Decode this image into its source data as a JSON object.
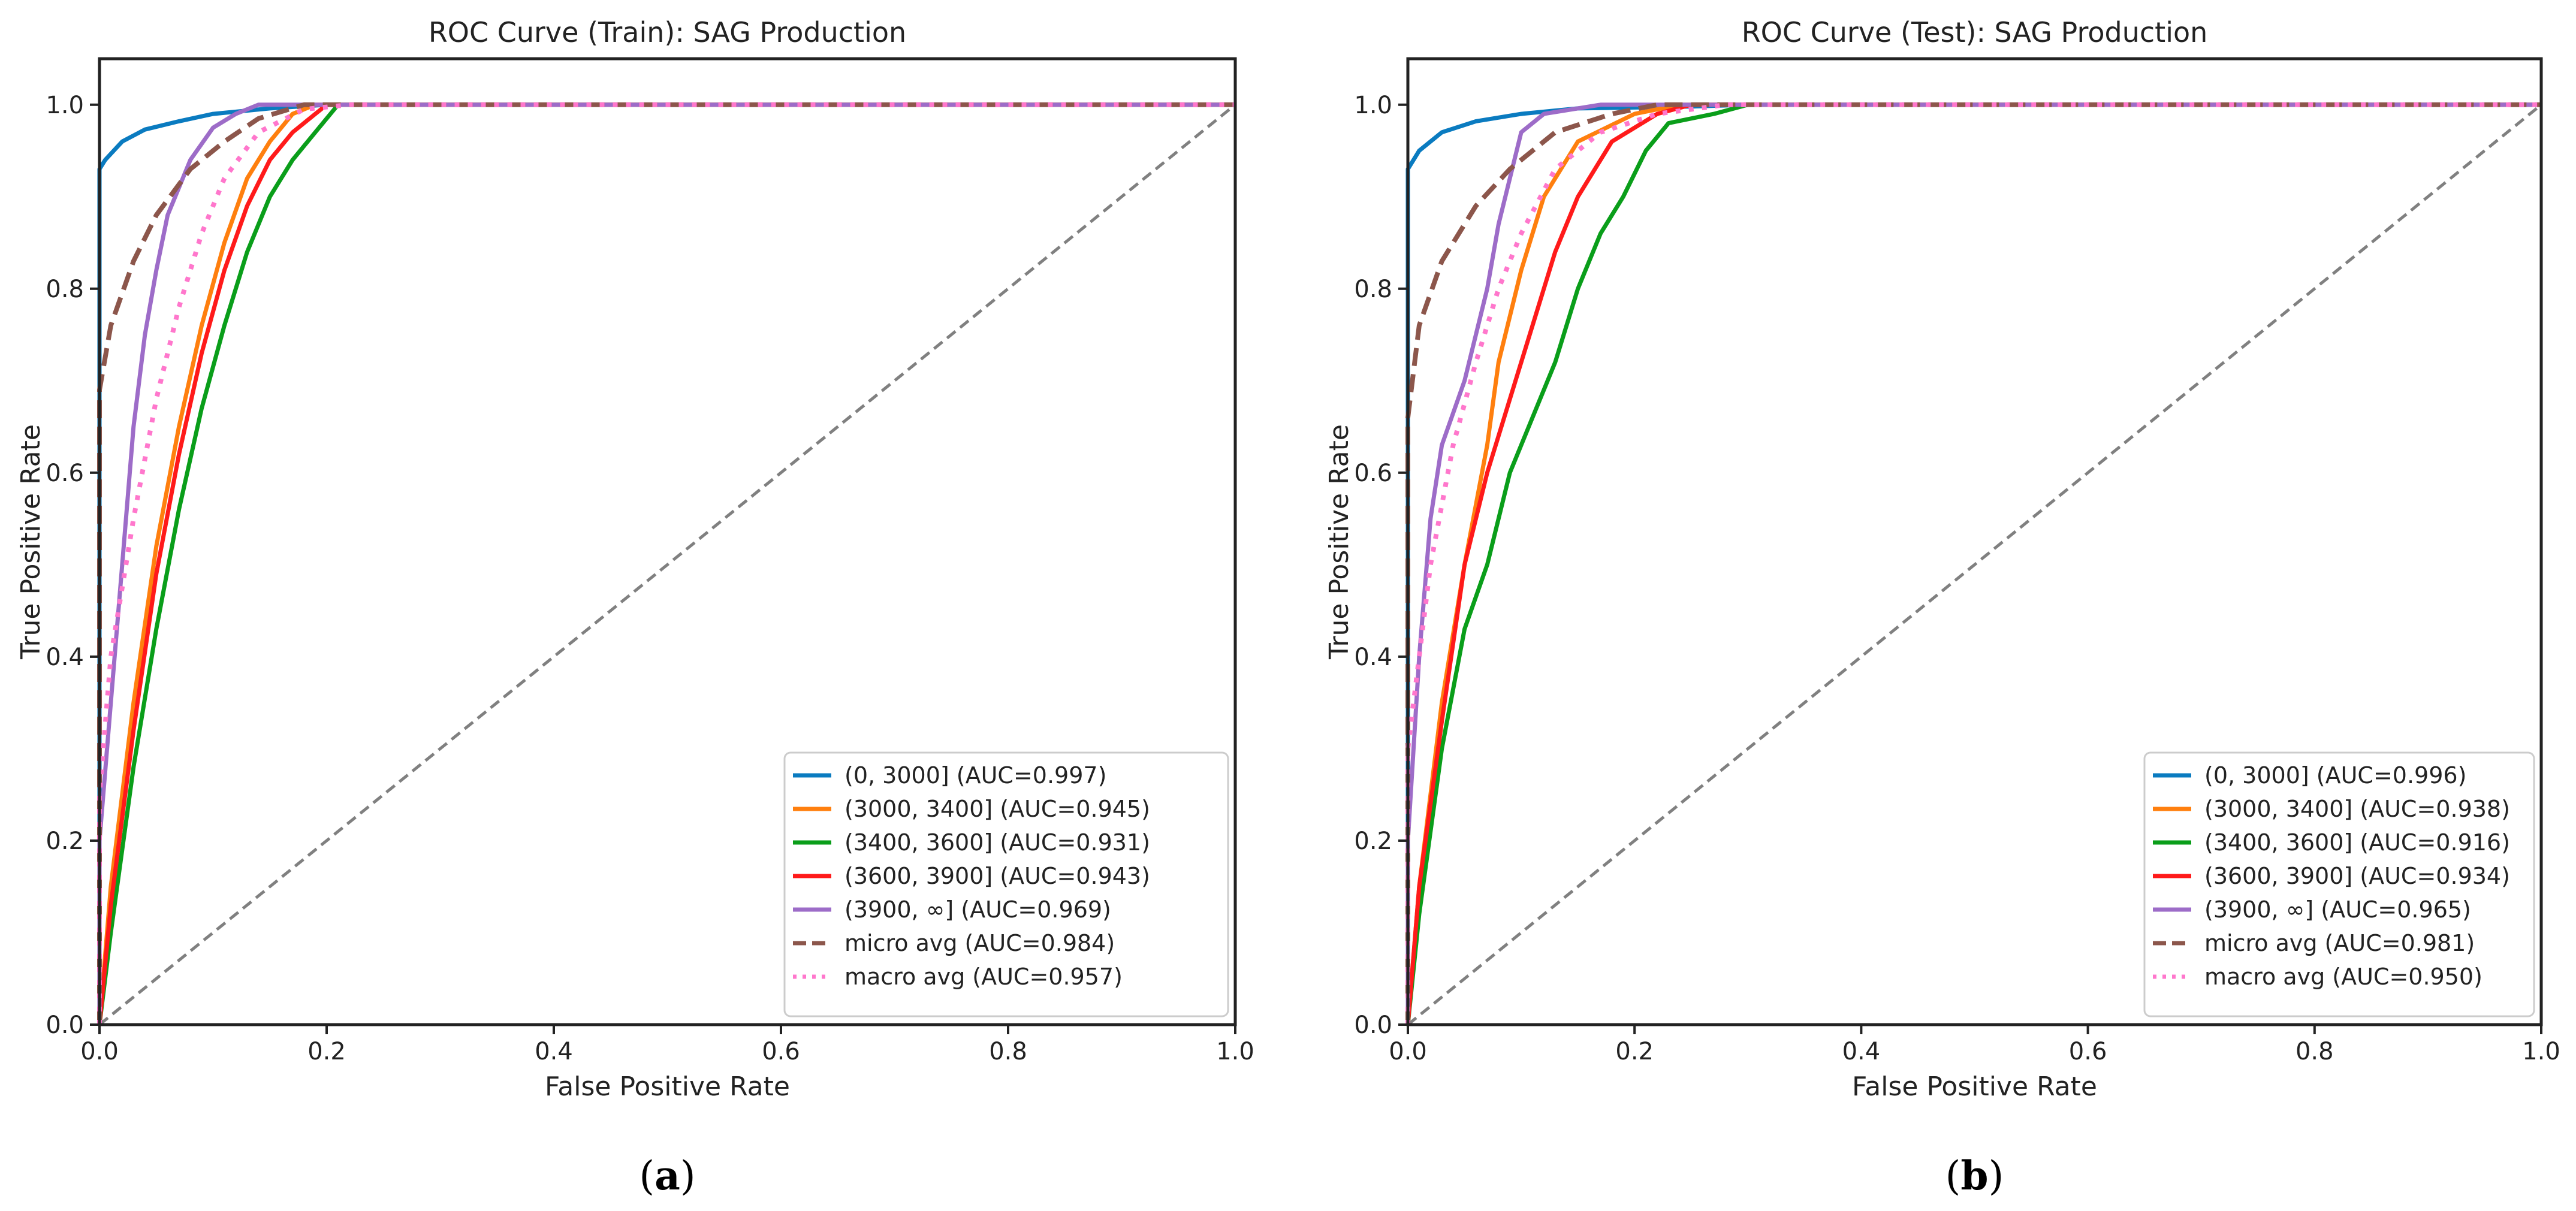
{
  "colors": {
    "c0": "#1f77b4",
    "c1": "#ff7f0e",
    "c2": "#2ca02c",
    "c3": "#d62728",
    "c4": "#9467bd",
    "micro": "#8c564b",
    "macro": "#e377c2",
    "diag": "#808080"
  },
  "chart_data": [
    {
      "type": "line",
      "caption": "a",
      "title": "ROC Curve (Train): SAG Production",
      "xlabel": "False Positive Rate",
      "ylabel": "True Positive Rate",
      "xlim": [
        0,
        1
      ],
      "ylim": [
        0,
        1.05
      ],
      "xticks": [
        "0.0",
        "0.2",
        "0.4",
        "0.6",
        "0.8",
        "1.0"
      ],
      "yticks": [
        "0.0",
        "0.2",
        "0.4",
        "0.6",
        "0.8",
        "1.0"
      ],
      "grid": false,
      "legend": "bottom-right",
      "series": [
        {
          "name": "(0, 3000] (AUC=0.997)",
          "color": "#0a7bc0",
          "style": "solid",
          "points": [
            [
              0,
              0
            ],
            [
              0,
              0.93
            ],
            [
              0.005,
              0.94
            ],
            [
              0.02,
              0.96
            ],
            [
              0.04,
              0.973
            ],
            [
              0.07,
              0.982
            ],
            [
              0.1,
              0.99
            ],
            [
              0.15,
              0.996
            ],
            [
              0.2,
              1
            ],
            [
              1,
              1
            ]
          ]
        },
        {
          "name": "(3000, 3400] (AUC=0.945)",
          "color": "#ff7f0e",
          "style": "solid",
          "points": [
            [
              0,
              0
            ],
            [
              0.01,
              0.15
            ],
            [
              0.03,
              0.35
            ],
            [
              0.05,
              0.52
            ],
            [
              0.07,
              0.65
            ],
            [
              0.09,
              0.76
            ],
            [
              0.11,
              0.85
            ],
            [
              0.13,
              0.92
            ],
            [
              0.15,
              0.96
            ],
            [
              0.17,
              0.99
            ],
            [
              0.19,
              1
            ],
            [
              1,
              1
            ]
          ]
        },
        {
          "name": "(3400, 3600] (AUC=0.931)",
          "color": "#0a9e1a",
          "style": "solid",
          "points": [
            [
              0,
              0
            ],
            [
              0.01,
              0.1
            ],
            [
              0.03,
              0.28
            ],
            [
              0.05,
              0.43
            ],
            [
              0.07,
              0.56
            ],
            [
              0.09,
              0.67
            ],
            [
              0.11,
              0.76
            ],
            [
              0.13,
              0.84
            ],
            [
              0.15,
              0.9
            ],
            [
              0.17,
              0.94
            ],
            [
              0.19,
              0.97
            ],
            [
              0.21,
              1
            ],
            [
              1,
              1
            ]
          ]
        },
        {
          "name": "(3600, 3900] (AUC=0.943)",
          "color": "#ff1a1a",
          "style": "solid",
          "points": [
            [
              0,
              0
            ],
            [
              0.01,
              0.13
            ],
            [
              0.03,
              0.32
            ],
            [
              0.05,
              0.49
            ],
            [
              0.07,
              0.62
            ],
            [
              0.09,
              0.73
            ],
            [
              0.11,
              0.82
            ],
            [
              0.13,
              0.89
            ],
            [
              0.15,
              0.94
            ],
            [
              0.17,
              0.97
            ],
            [
              0.2,
              1
            ],
            [
              1,
              1
            ]
          ]
        },
        {
          "name": "(3900, ∞] (AUC=0.969)",
          "color": "#9d6cc8",
          "style": "solid",
          "points": [
            [
              0,
              0
            ],
            [
              0,
              0.2
            ],
            [
              0.01,
              0.35
            ],
            [
              0.02,
              0.5
            ],
            [
              0.03,
              0.65
            ],
            [
              0.04,
              0.75
            ],
            [
              0.05,
              0.82
            ],
            [
              0.06,
              0.88
            ],
            [
              0.08,
              0.94
            ],
            [
              0.1,
              0.975
            ],
            [
              0.12,
              0.99
            ],
            [
              0.14,
              1
            ],
            [
              1,
              1
            ]
          ]
        },
        {
          "name": "micro avg (AUC=0.984)",
          "color": "#8c564b",
          "style": "dashed",
          "points": [
            [
              0,
              0
            ],
            [
              0,
              0.69
            ],
            [
              0.01,
              0.76
            ],
            [
              0.03,
              0.83
            ],
            [
              0.05,
              0.88
            ],
            [
              0.08,
              0.93
            ],
            [
              0.11,
              0.96
            ],
            [
              0.14,
              0.985
            ],
            [
              0.18,
              1
            ],
            [
              1,
              1
            ]
          ]
        },
        {
          "name": "macro avg (AUC=0.957)",
          "color": "#ff77cc",
          "style": "dotted",
          "points": [
            [
              0,
              0
            ],
            [
              0,
              0.25
            ],
            [
              0.01,
              0.4
            ],
            [
              0.03,
              0.55
            ],
            [
              0.05,
              0.68
            ],
            [
              0.07,
              0.78
            ],
            [
              0.09,
              0.86
            ],
            [
              0.11,
              0.92
            ],
            [
              0.14,
              0.97
            ],
            [
              0.18,
              0.995
            ],
            [
              0.22,
              1
            ],
            [
              1,
              1
            ]
          ]
        }
      ]
    },
    {
      "type": "line",
      "caption": "b",
      "title": "ROC Curve (Test): SAG Production",
      "xlabel": "False Positive Rate",
      "ylabel": "True Positive Rate",
      "xlim": [
        0,
        1
      ],
      "ylim": [
        0,
        1.05
      ],
      "xticks": [
        "0.0",
        "0.2",
        "0.4",
        "0.6",
        "0.8",
        "1.0"
      ],
      "yticks": [
        "0.0",
        "0.2",
        "0.4",
        "0.6",
        "0.8",
        "1.0"
      ],
      "grid": false,
      "legend": "bottom-right",
      "series": [
        {
          "name": "(0, 3000] (AUC=0.996)",
          "color": "#0a7bc0",
          "style": "solid",
          "points": [
            [
              0,
              0
            ],
            [
              0,
              0.93
            ],
            [
              0.01,
              0.95
            ],
            [
              0.03,
              0.97
            ],
            [
              0.06,
              0.982
            ],
            [
              0.1,
              0.99
            ],
            [
              0.15,
              0.996
            ],
            [
              0.25,
              0.998
            ],
            [
              0.3,
              1
            ],
            [
              1,
              1
            ]
          ]
        },
        {
          "name": "(3000, 3400] (AUC=0.938)",
          "color": "#ff7f0e",
          "style": "solid",
          "points": [
            [
              0,
              0
            ],
            [
              0.01,
              0.15
            ],
            [
              0.03,
              0.35
            ],
            [
              0.05,
              0.5
            ],
            [
              0.07,
              0.63
            ],
            [
              0.08,
              0.72
            ],
            [
              0.1,
              0.82
            ],
            [
              0.12,
              0.9
            ],
            [
              0.15,
              0.96
            ],
            [
              0.2,
              0.99
            ],
            [
              0.24,
              1
            ],
            [
              1,
              1
            ]
          ]
        },
        {
          "name": "(3400, 3600] (AUC=0.916)",
          "color": "#0a9e1a",
          "style": "solid",
          "points": [
            [
              0,
              0
            ],
            [
              0.01,
              0.12
            ],
            [
              0.03,
              0.3
            ],
            [
              0.05,
              0.43
            ],
            [
              0.07,
              0.5
            ],
            [
              0.09,
              0.6
            ],
            [
              0.11,
              0.66
            ],
            [
              0.13,
              0.72
            ],
            [
              0.15,
              0.8
            ],
            [
              0.17,
              0.86
            ],
            [
              0.19,
              0.9
            ],
            [
              0.21,
              0.95
            ],
            [
              0.23,
              0.98
            ],
            [
              0.27,
              0.99
            ],
            [
              0.3,
              1
            ],
            [
              1,
              1
            ]
          ]
        },
        {
          "name": "(3600, 3900] (AUC=0.934)",
          "color": "#ff1a1a",
          "style": "solid",
          "points": [
            [
              0,
              0
            ],
            [
              0.01,
              0.15
            ],
            [
              0.03,
              0.33
            ],
            [
              0.05,
              0.5
            ],
            [
              0.07,
              0.6
            ],
            [
              0.09,
              0.68
            ],
            [
              0.11,
              0.76
            ],
            [
              0.13,
              0.84
            ],
            [
              0.15,
              0.9
            ],
            [
              0.18,
              0.96
            ],
            [
              0.22,
              0.99
            ],
            [
              0.25,
              1
            ],
            [
              1,
              1
            ]
          ]
        },
        {
          "name": "(3900, ∞] (AUC=0.965)",
          "color": "#9d6cc8",
          "style": "solid",
          "points": [
            [
              0,
              0
            ],
            [
              0,
              0.2
            ],
            [
              0.01,
              0.4
            ],
            [
              0.02,
              0.55
            ],
            [
              0.03,
              0.63
            ],
            [
              0.05,
              0.7
            ],
            [
              0.07,
              0.8
            ],
            [
              0.08,
              0.87
            ],
            [
              0.09,
              0.92
            ],
            [
              0.1,
              0.97
            ],
            [
              0.12,
              0.99
            ],
            [
              0.17,
              1
            ],
            [
              1,
              1
            ]
          ]
        },
        {
          "name": "micro avg (AUC=0.981)",
          "color": "#8c564b",
          "style": "dashed",
          "points": [
            [
              0,
              0
            ],
            [
              0,
              0.66
            ],
            [
              0.01,
              0.76
            ],
            [
              0.03,
              0.83
            ],
            [
              0.06,
              0.89
            ],
            [
              0.09,
              0.93
            ],
            [
              0.13,
              0.97
            ],
            [
              0.18,
              0.99
            ],
            [
              0.22,
              1
            ],
            [
              1,
              1
            ]
          ]
        },
        {
          "name": "macro avg (AUC=0.950)",
          "color": "#ff77cc",
          "style": "dotted",
          "points": [
            [
              0,
              0
            ],
            [
              0,
              0.3
            ],
            [
              0.02,
              0.5
            ],
            [
              0.04,
              0.63
            ],
            [
              0.06,
              0.72
            ],
            [
              0.08,
              0.8
            ],
            [
              0.1,
              0.86
            ],
            [
              0.13,
              0.93
            ],
            [
              0.17,
              0.97
            ],
            [
              0.22,
              0.99
            ],
            [
              0.28,
              1
            ],
            [
              1,
              1
            ]
          ]
        }
      ]
    }
  ]
}
